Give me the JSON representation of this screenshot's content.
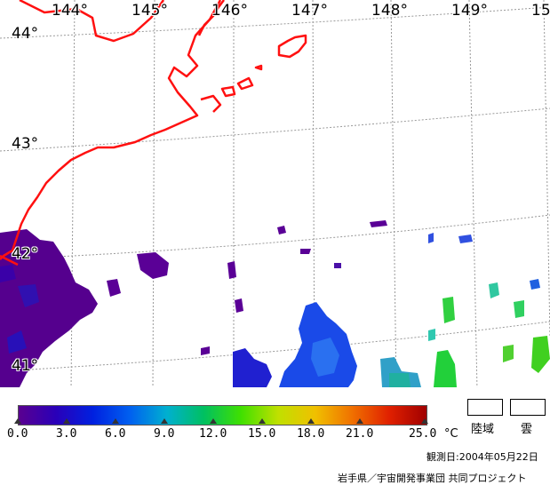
{
  "map": {
    "longitude_labels": [
      "144°",
      "145°",
      "146°",
      "147°",
      "148°",
      "149°",
      "15"
    ],
    "latitude_labels": [
      "44°",
      "43°",
      "42°",
      "41°"
    ],
    "colors": {
      "coastline": "#ff1010",
      "graticule": "#9a9a9a",
      "land_background": "#ffffff"
    }
  },
  "colorbar": {
    "min": 0.0,
    "max": 25.0,
    "tick_labels": [
      "0.0",
      "3.0",
      "6.0",
      "9.0",
      "12.0",
      "15.0",
      "18.0",
      "21.0",
      "25.0"
    ],
    "unit": "°C",
    "colors": [
      "#5a0090",
      "#2a00b8",
      "#0020e0",
      "#0060f0",
      "#00b0d0",
      "#00c060",
      "#40e000",
      "#c0e000",
      "#f0c000",
      "#f07000",
      "#e02000",
      "#a00000"
    ]
  },
  "legend": {
    "land_label": "陸域",
    "cloud_label": "雲"
  },
  "footer": {
    "observation_date": "観測日:2004年05月22日",
    "credit": "岩手県／宇宙開発事業団 共同プロジェクト"
  }
}
